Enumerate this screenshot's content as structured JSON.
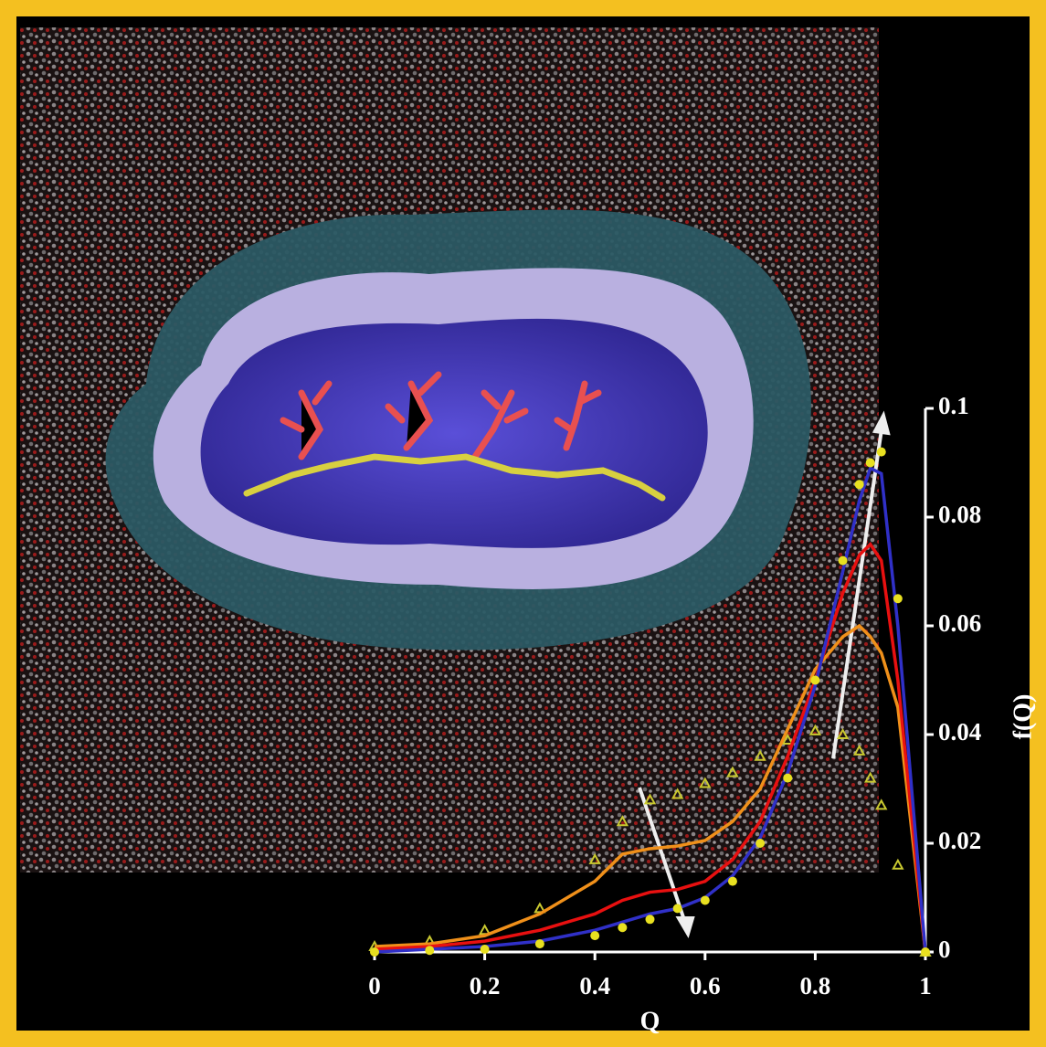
{
  "chart_data": {
    "type": "line",
    "x_label": "Q",
    "y_label": "f(Q)",
    "x": [
      0,
      0.1,
      0.2,
      0.3,
      0.4,
      0.45,
      0.5,
      0.55,
      0.6,
      0.65,
      0.7,
      0.75,
      0.8,
      0.85,
      0.88,
      0.9,
      0.92,
      0.95,
      1
    ],
    "series": [
      {
        "color": "#c9c930",
        "marker": "triangle",
        "values": [
          0.001,
          0.002,
          0.004,
          0.008,
          0.017,
          0.024,
          0.028,
          0.029,
          0.031,
          0.033,
          0.036,
          0.039,
          0.0407,
          0.04,
          0.037,
          0.032,
          0.027,
          0.016,
          0
        ]
      },
      {
        "color": "#f0901a",
        "marker": "none",
        "values": [
          0.001,
          0.0015,
          0.003,
          0.007,
          0.013,
          0.018,
          0.019,
          0.0195,
          0.0205,
          0.024,
          0.03,
          0.041,
          0.052,
          0.058,
          0.06,
          0.058,
          0.055,
          0.045,
          0
        ]
      },
      {
        "color": "#e81010",
        "marker": "none",
        "values": [
          0.0005,
          0.001,
          0.002,
          0.004,
          0.007,
          0.0095,
          0.011,
          0.0115,
          0.013,
          0.017,
          0.024,
          0.036,
          0.05,
          0.066,
          0.073,
          0.075,
          0.072,
          0.05,
          0
        ]
      },
      {
        "color": "#3030c8",
        "marker": "none",
        "values": [
          0,
          0.0005,
          0.001,
          0.002,
          0.004,
          0.0055,
          0.007,
          0.008,
          0.01,
          0.014,
          0.021,
          0.033,
          0.049,
          0.07,
          0.083,
          0.089,
          0.088,
          0.06,
          0
        ]
      },
      {
        "color": "#e8e020",
        "marker": "circle",
        "values": [
          0,
          0.0003,
          0.0005,
          0.0015,
          0.003,
          0.0045,
          0.006,
          0.008,
          0.0095,
          0.013,
          0.02,
          0.032,
          0.05,
          0.072,
          0.086,
          0.09,
          0.092,
          0.065,
          0
        ]
      }
    ],
    "xlim": [
      0,
      1
    ],
    "xticks": [
      0,
      0.2,
      0.4,
      0.6,
      0.8,
      1
    ],
    "ylim": [
      0,
      0.1
    ],
    "yticks": [
      0,
      0.02,
      0.04,
      0.06,
      0.08,
      0.1
    ],
    "grid": false
  }
}
